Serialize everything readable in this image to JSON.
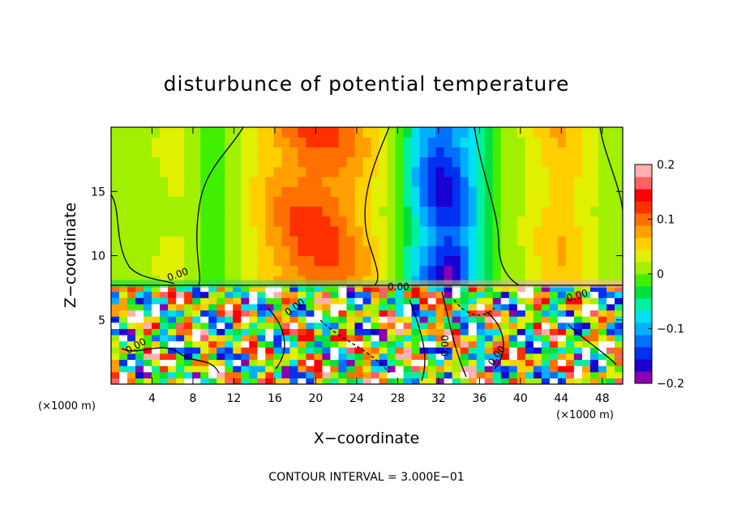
{
  "chart_data": {
    "type": "heatmap",
    "title": "disturbunce of potential temperature",
    "xlabel": "X−coordinate",
    "ylabel": "Z−coordinate",
    "x_unit_label": "(×1000 m)",
    "x_unit_label_right": "(×1000 m)",
    "xlim": [
      0,
      50
    ],
    "ylim": [
      0,
      20
    ],
    "x_ticks": [
      4,
      8,
      12,
      16,
      20,
      24,
      28,
      32,
      36,
      40,
      44,
      48
    ],
    "x_tick_labels": [
      "4",
      "8",
      "12",
      "16",
      "20",
      "24",
      "28",
      "32",
      "36",
      "40",
      "44",
      "48"
    ],
    "y_ticks": [
      5,
      10,
      15
    ],
    "y_tick_labels": [
      "5",
      "10",
      "15"
    ],
    "colorbar": {
      "range": [
        -0.2,
        0.2
      ],
      "ticks": [
        0.2,
        0.1,
        0,
        -0.1,
        -0.2
      ],
      "tick_labels": [
        "0.2",
        "0.1",
        "0",
        "−0.1",
        "−0.2"
      ],
      "colors": [
        "#8a00b0",
        "#1a00d0",
        "#0030f0",
        "#0070ff",
        "#00b0ff",
        "#00e0f0",
        "#00f0a0",
        "#00e040",
        "#40f000",
        "#a0f000",
        "#e0f000",
        "#ffd000",
        "#ffa000",
        "#ff7000",
        "#ff3000",
        "#ff0000",
        "#ff6060",
        "#ffb0b0"
      ]
    },
    "contour_labels": [
      "0.00",
      "0.00",
      "0.00",
      "0.00",
      "0.00",
      "0.00",
      "0.00"
    ],
    "contour_interval_text": "CONTOUR INTERVAL = 3.000E−01"
  }
}
